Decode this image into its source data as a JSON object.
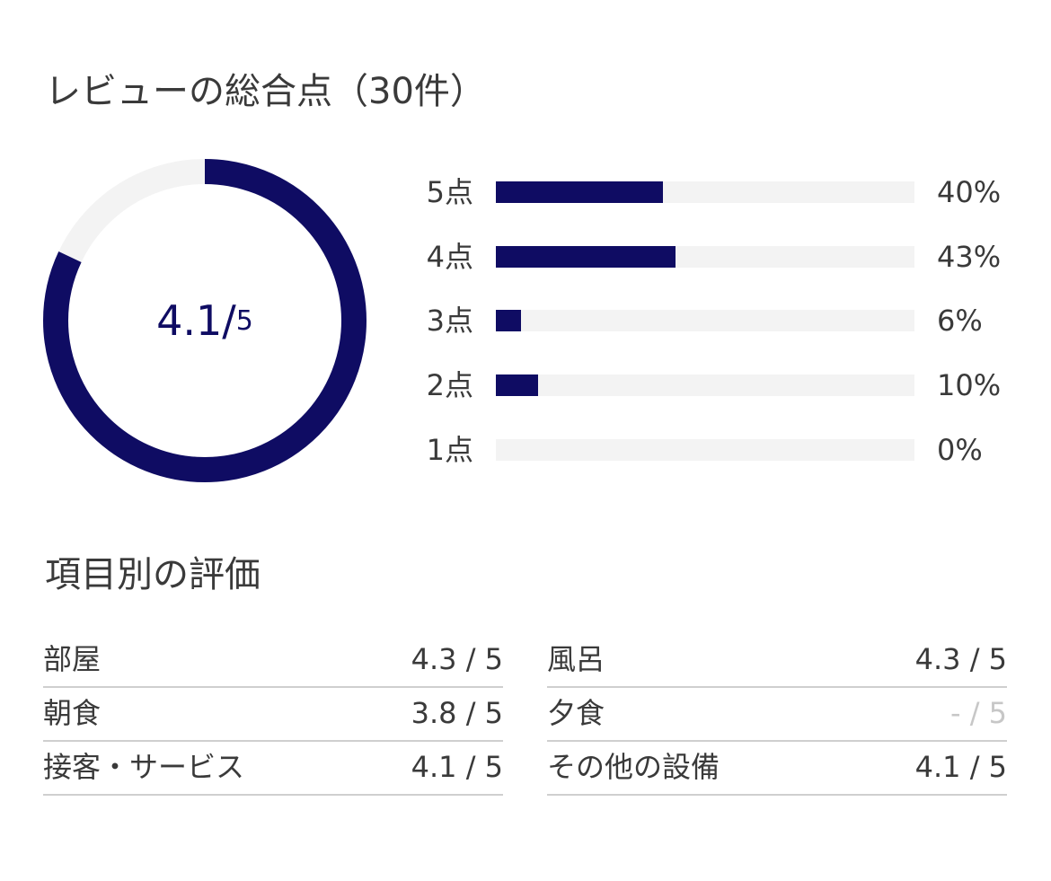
{
  "summary": {
    "title": "レビューの総合点（30件）",
    "score": "4.1/",
    "max": "5"
  },
  "distribution": [
    {
      "label": "5点",
      "pct_text": "40%",
      "fraction": 0.4
    },
    {
      "label": "4点",
      "pct_text": "43%",
      "fraction": 0.43
    },
    {
      "label": "3点",
      "pct_text": "6%",
      "fraction": 0.06
    },
    {
      "label": "2点",
      "pct_text": "10%",
      "fraction": 0.1
    },
    {
      "label": "1点",
      "pct_text": "0%",
      "fraction": 0.0
    }
  ],
  "rating_ring": {
    "fraction": 0.82
  },
  "categories_title": "項目別の評価",
  "categories": [
    {
      "name": "部屋",
      "value": "4.3 / 5"
    },
    {
      "name": "朝食",
      "value": "3.8 / 5"
    },
    {
      "name": "接客・サービス",
      "value": "4.1 / 5"
    },
    {
      "name": "風呂",
      "value": "4.3 / 5"
    },
    {
      "name": "夕食",
      "value": "- / 5"
    },
    {
      "name": "その他の設備",
      "value": "4.1 / 5"
    }
  ],
  "colors": {
    "accent": "#0f0c63",
    "track": "#f3f3f3",
    "divider": "#cfcfcf",
    "muted": "#c7c7c7"
  }
}
